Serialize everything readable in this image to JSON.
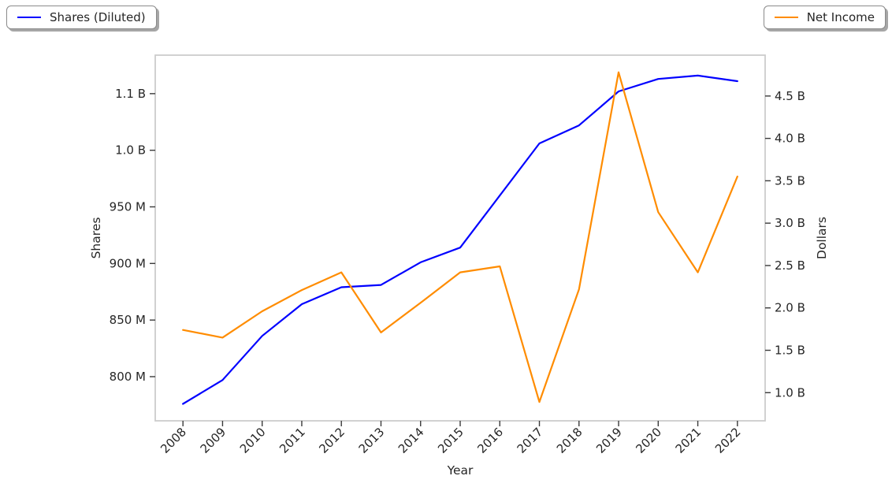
{
  "figure": {
    "background": "#ffffff",
    "plot_border_color": "#cccccc",
    "text_color": "#262626",
    "legend_left": {
      "label": "Shares (Diluted)",
      "color": "#0000ff"
    },
    "legend_right": {
      "label": "Net Income",
      "color": "#ff8c00"
    }
  },
  "chart_data": {
    "type": "line",
    "title": "",
    "xlabel": "Year",
    "grid": false,
    "legend_position": "upper-left and upper-right, outside axes, boxed with shadow",
    "categories": [
      2008,
      2009,
      2010,
      2011,
      2012,
      2013,
      2014,
      2015,
      2016,
      2017,
      2018,
      2019,
      2020,
      2021,
      2022
    ],
    "xlim": [
      2007.3,
      2022.7
    ],
    "left_axis": {
      "label": "Shares",
      "range_millions": [
        761,
        1084
      ],
      "ticks": [
        {
          "v": 800,
          "label": "800 M"
        },
        {
          "v": 850,
          "label": "850 M"
        },
        {
          "v": 900,
          "label": "900 M"
        },
        {
          "v": 950,
          "label": "950 M"
        },
        {
          "v": 1000,
          "label": "1.0 B"
        },
        {
          "v": 1050,
          "label": "1.1 B"
        }
      ]
    },
    "right_axis": {
      "label": "Dollars",
      "range_millions": [
        668,
        4982
      ],
      "ticks": [
        {
          "v": 1000,
          "label": "1.0 B"
        },
        {
          "v": 1500,
          "label": "1.5 B"
        },
        {
          "v": 2000,
          "label": "2.0 B"
        },
        {
          "v": 2500,
          "label": "2.5 B"
        },
        {
          "v": 3000,
          "label": "3.0 B"
        },
        {
          "v": 3500,
          "label": "3.5 B"
        },
        {
          "v": 4000,
          "label": "4.0 B"
        },
        {
          "v": 4500,
          "label": "4.5 B"
        }
      ]
    },
    "series": [
      {
        "name": "Shares (Diluted)",
        "axis": "left",
        "color": "#0000ff",
        "units": "shares, millions",
        "values_millions": [
          776,
          797,
          836,
          864,
          879,
          881,
          901,
          914,
          960,
          1006,
          1022,
          1052,
          1063,
          1066,
          1061
        ]
      },
      {
        "name": "Net Income",
        "axis": "right",
        "color": "#ff8c00",
        "units": "dollars, millions",
        "values_millions": [
          1740,
          1650,
          1960,
          2210,
          2420,
          1710,
          2060,
          2420,
          2490,
          890,
          2220,
          4780,
          3130,
          2420,
          3550
        ]
      }
    ]
  }
}
